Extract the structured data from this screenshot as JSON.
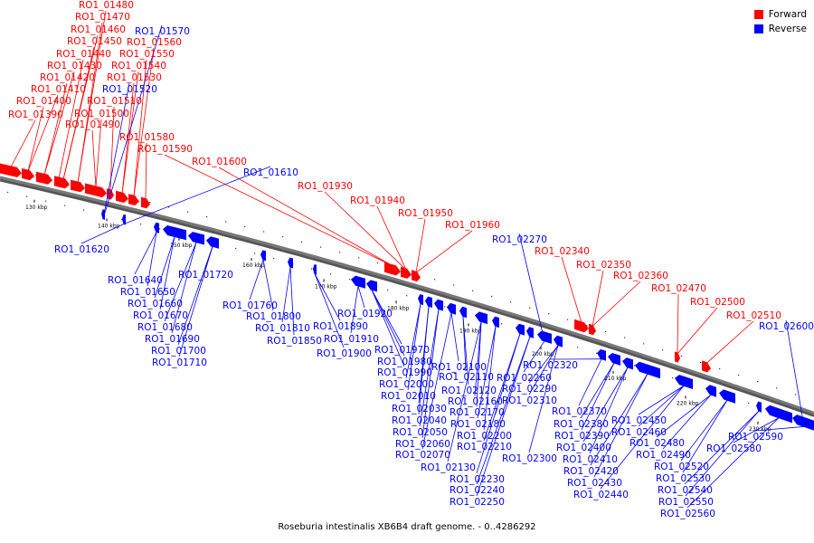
{
  "colors": {
    "forward": "#ff0000",
    "reverse": "#0000ff",
    "backbone": "#777777",
    "shadow": "#555555"
  },
  "legend": [
    {
      "label": "Forward",
      "color": "#ff0000"
    },
    {
      "label": "Reverse",
      "color": "#0000ff"
    }
  ],
  "caption": "Roseburia intestinalis XB6B4 draft genome. - 0..4286292",
  "ticks": [
    {
      "kbp": 130,
      "label": "130 kbp"
    },
    {
      "kbp": 140,
      "label": "140 kbp"
    },
    {
      "kbp": 150,
      "label": "150 kbp"
    },
    {
      "kbp": 160,
      "label": "160 kbp"
    },
    {
      "kbp": 170,
      "label": "170 kbp"
    },
    {
      "kbp": 180,
      "label": "180 kbp"
    },
    {
      "kbp": 190,
      "label": "190 kbp"
    },
    {
      "kbp": 200,
      "label": "200 kbp"
    },
    {
      "kbp": 210,
      "label": "210 kbp"
    },
    {
      "kbp": 220,
      "label": "220 kbp"
    },
    {
      "kbp": 230,
      "label": "230 kbp"
    }
  ],
  "forward_genes": [
    "RO1_01390",
    "RO1_01400",
    "RO1_01410",
    "RO1_01420",
    "RO1_01430",
    "RO1_01440",
    "RO1_01450",
    "RO1_01460",
    "RO1_01470",
    "RO1_01480",
    "RO1_01490",
    "RO1_01500",
    "RO1_01510",
    "RO1_01530",
    "RO1_01540",
    "RO1_01550",
    "RO1_01560",
    "RO1_01580",
    "RO1_01590",
    "RO1_01600",
    "RO1_01930",
    "RO1_01940",
    "RO1_01950",
    "RO1_01960",
    "RO1_02340",
    "RO1_02350",
    "RO1_02360",
    "RO1_02470",
    "RO1_02500",
    "RO1_02510"
  ],
  "reverse_genes": [
    "RO1_01520",
    "RO1_01570",
    "RO1_01610",
    "RO1_01620",
    "RO1_01640",
    "RO1_01650",
    "RO1_01660",
    "RO1_01670",
    "RO1_01680",
    "RO1_01690",
    "RO1_01700",
    "RO1_01710",
    "RO1_01720",
    "RO1_01760",
    "RO1_01800",
    "RO1_01810",
    "RO1_01850",
    "RO1_01890",
    "RO1_01900",
    "RO1_01910",
    "RO1_01920",
    "RO1_01970",
    "RO1_01980",
    "RO1_01990",
    "RO1_02000",
    "RO1_02010",
    "RO1_02030",
    "RO1_02040",
    "RO1_02050",
    "RO1_02060",
    "RO1_02070",
    "RO1_02100",
    "RO1_02110",
    "RO1_02120",
    "RO1_02130",
    "RO1_02160",
    "RO1_02170",
    "RO1_02180",
    "RO1_02200",
    "RO1_02210",
    "RO1_02230",
    "RO1_02240",
    "RO1_02250",
    "RO1_02260",
    "RO1_02270",
    "RO1_02290",
    "RO1_02300",
    "RO1_02310",
    "RO1_02320",
    "RO1_02370",
    "RO1_02380",
    "RO1_02390",
    "RO1_02400",
    "RO1_02410",
    "RO1_02420",
    "RO1_02430",
    "RO1_02440",
    "RO1_02450",
    "RO1_02460",
    "RO1_02480",
    "RO1_02490",
    "RO1_02520",
    "RO1_02530",
    "RO1_02540",
    "RO1_02550",
    "RO1_02560",
    "RO1_02580",
    "RO1_02590",
    "RO1_02600"
  ]
}
